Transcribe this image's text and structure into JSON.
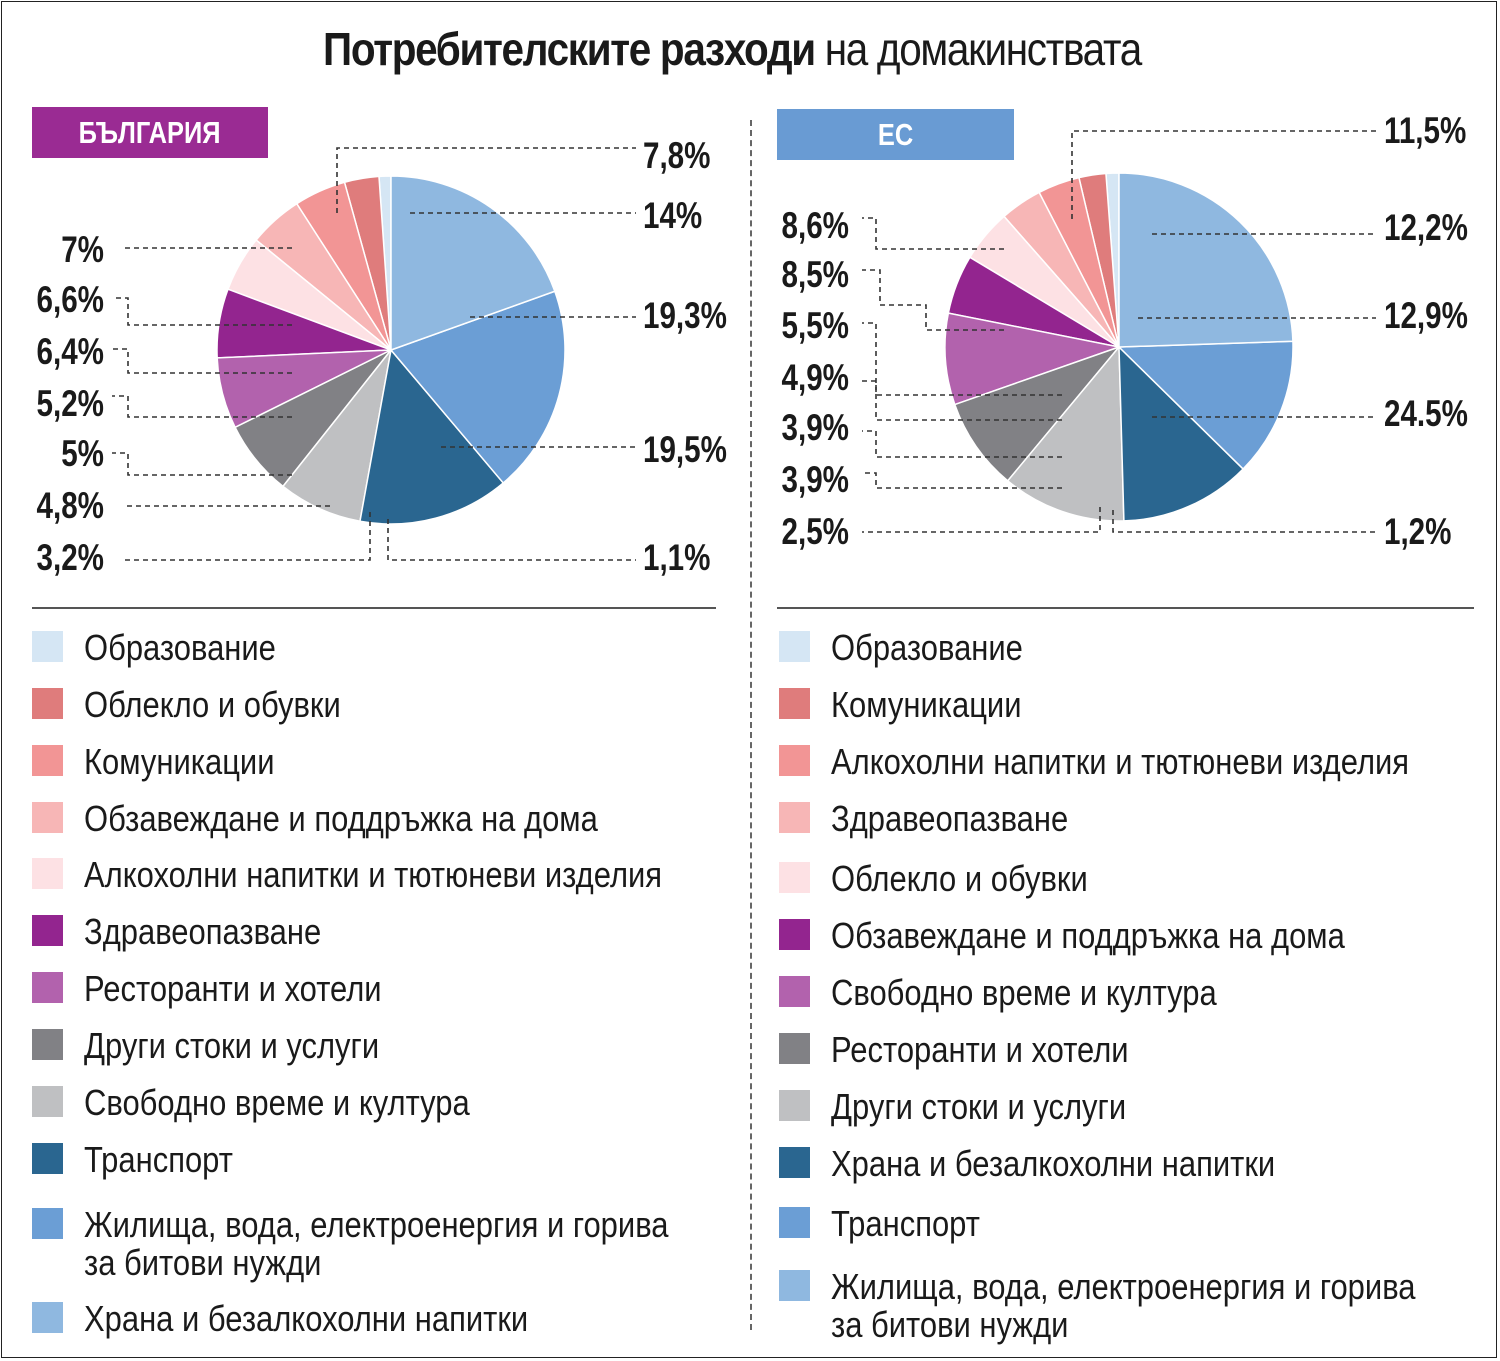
{
  "title": {
    "bold": "Потребителските разходи",
    "normal": "на домакинствата"
  },
  "colors": {
    "education": "#d5e6f4",
    "dark_salmon": "#df7c7c",
    "salmon": "#f29595",
    "light_salmon": "#f7b6b6",
    "pale_pink": "#fde1e4",
    "purple": "#93258f",
    "orchid": "#b262ad",
    "dark_gray": "#818185",
    "light_gray": "#bfc0c2",
    "navy": "#2a6690",
    "medium_blue": "#6b9ed5",
    "light_blue": "#8fb8e0"
  },
  "chart_data": [
    {
      "type": "pie",
      "badge": "БЪЛГАРИЯ",
      "slices": [
        {
          "label": "Образование",
          "value": 1.1,
          "display": "1,1%",
          "color_key": "education"
        },
        {
          "label": "Облекло и обувки",
          "value": 3.2,
          "display": "3,2%",
          "color_key": "dark_salmon"
        },
        {
          "label": "Комуникации",
          "value": 4.8,
          "display": "4,8%",
          "color_key": "salmon"
        },
        {
          "label": "Обзавеждане и поддръжка на дома",
          "value": 5,
          "display": "5%",
          "color_key": "light_salmon"
        },
        {
          "label": "Алкохолни напитки и тютюневи изделия",
          "value": 5.2,
          "display": "5,2%",
          "color_key": "pale_pink"
        },
        {
          "label": "Здравеопазване",
          "value": 6.4,
          "display": "6,4%",
          "color_key": "purple"
        },
        {
          "label": "Ресторанти и хотели",
          "value": 6.6,
          "display": "6,6%",
          "color_key": "orchid"
        },
        {
          "label": "Други стоки и услуги",
          "value": 7,
          "display": "7%",
          "color_key": "dark_gray"
        },
        {
          "label": "Свободно време и култура",
          "value": 7.8,
          "display": "7,8%",
          "color_key": "light_gray"
        },
        {
          "label": "Транспорт",
          "value": 14,
          "display": "14%",
          "color_key": "navy"
        },
        {
          "label": "Жилища, вода, електроенергия и горива\nза битови нужди",
          "value": 19.3,
          "display": "19,3%",
          "color_key": "medium_blue"
        },
        {
          "label": "Храна и безалкохолни напитки",
          "value": 19.5,
          "display": "19,5%",
          "color_key": "light_blue"
        }
      ]
    },
    {
      "type": "pie",
      "badge": "ЕС",
      "slices": [
        {
          "label": "Образование",
          "value": 1.2,
          "display": "1,2%",
          "color_key": "education"
        },
        {
          "label": "Комуникации",
          "value": 2.5,
          "display": "2,5%",
          "color_key": "dark_salmon"
        },
        {
          "label": "Алкохолни напитки и тютюневи изделия",
          "value": 3.9,
          "display": "3,9%",
          "color_key": "salmon"
        },
        {
          "label": "Здравеопазване",
          "value": 3.9,
          "display": "3,9%",
          "color_key": "light_salmon"
        },
        {
          "label": "Облекло и обувки",
          "value": 4.9,
          "display": "4,9%",
          "color_key": "pale_pink"
        },
        {
          "label": "Обзавеждане и поддръжка на дома",
          "value": 5.5,
          "display": "5,5%",
          "color_key": "purple"
        },
        {
          "label": "Свободно време и култура",
          "value": 8.5,
          "display": "8,5%",
          "color_key": "orchid"
        },
        {
          "label": "Ресторанти и хотели",
          "value": 8.6,
          "display": "8,6%",
          "color_key": "dark_gray"
        },
        {
          "label": "Други стоки и услуги",
          "value": 11.5,
          "display": "11,5%",
          "color_key": "light_gray"
        },
        {
          "label": "Храна и безалкохолни напитки",
          "value": 12.2,
          "display": "12,2%",
          "color_key": "navy"
        },
        {
          "label": "Транспорт",
          "value": 12.9,
          "display": "12,9%",
          "color_key": "medium_blue"
        },
        {
          "label": "Жилища, вода, електроенергия и горива\nза битови нужди",
          "value": 24.5,
          "display": "24.5%",
          "color_key": "light_blue"
        }
      ]
    }
  ]
}
